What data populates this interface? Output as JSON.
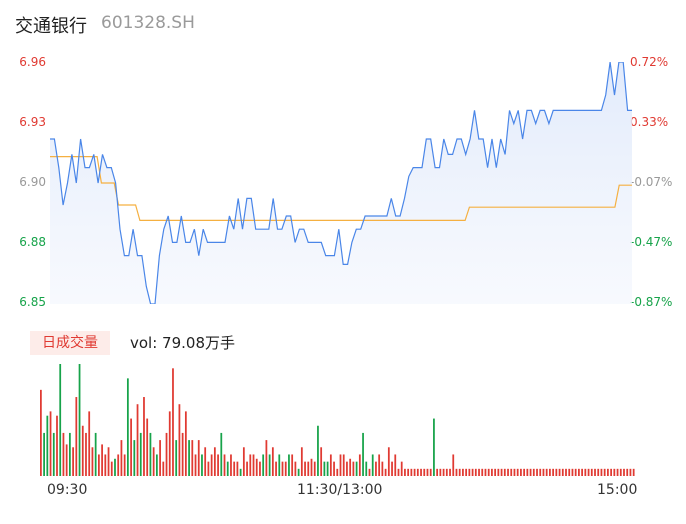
{
  "header": {
    "name": "交通银行",
    "code": "601328.SH"
  },
  "chart_data": [
    {
      "type": "line",
      "price_ticks": [
        "6.96",
        "6.93",
        "6.90",
        "6.88",
        "6.85"
      ],
      "pct_ticks": [
        "0.72%",
        "0.33%",
        "-0.07%",
        "-0.47%",
        "-0.87%"
      ],
      "ylim": [
        6.85,
        6.96
      ],
      "series": [
        {
          "values": [
            6.925,
            6.925,
            6.912,
            6.895,
            6.905,
            6.918,
            6.905,
            6.925,
            6.912,
            6.912,
            6.918,
            6.905,
            6.918,
            6.912,
            6.912,
            6.905,
            6.884,
            6.872,
            6.872,
            6.884,
            6.872,
            6.872,
            6.858,
            6.85,
            6.85,
            6.872,
            6.884,
            6.89,
            6.878,
            6.878,
            6.89,
            6.878,
            6.878,
            6.884,
            6.872,
            6.884,
            6.878,
            6.878,
            6.878,
            6.878,
            6.878,
            6.89,
            6.884,
            6.898,
            6.884,
            6.898,
            6.898,
            6.884,
            6.884,
            6.884,
            6.884,
            6.898,
            6.884,
            6.884,
            6.89,
            6.89,
            6.878,
            6.884,
            6.884,
            6.878,
            6.878,
            6.878,
            6.878,
            6.872,
            6.872,
            6.872,
            6.884,
            6.868,
            6.868,
            6.878,
            6.884,
            6.884,
            6.89,
            6.89,
            6.89,
            6.89,
            6.89,
            6.89,
            6.898,
            6.89,
            6.89,
            6.898,
            6.908,
            6.912,
            6.912,
            6.912,
            6.925,
            6.925,
            6.912,
            6.912,
            6.925,
            6.918,
            6.918,
            6.925,
            6.925,
            6.918,
            6.925,
            6.938,
            6.925,
            6.925,
            6.912,
            6.925,
            6.912,
            6.925,
            6.918,
            6.938,
            6.932,
            6.938,
            6.925,
            6.938,
            6.938,
            6.932,
            6.938,
            6.938,
            6.932,
            6.938,
            6.938,
            6.938,
            6.938,
            6.938,
            6.938,
            6.938,
            6.938,
            6.938,
            6.938,
            6.938,
            6.938,
            6.945,
            6.96,
            6.945,
            6.96,
            6.96,
            6.938,
            6.938
          ]
        },
        {
          "values": [
            6.917,
            6.917,
            6.917,
            6.917,
            6.917,
            6.917,
            6.917,
            6.917,
            6.917,
            6.917,
            6.917,
            6.917,
            6.905,
            6.905,
            6.905,
            6.905,
            6.895,
            6.895,
            6.895,
            6.895,
            6.895,
            6.888,
            6.888,
            6.888,
            6.888,
            6.888,
            6.888,
            6.888,
            6.888,
            6.888,
            6.888,
            6.888,
            6.888,
            6.888,
            6.888,
            6.888,
            6.888,
            6.888,
            6.888,
            6.888,
            6.888,
            6.888,
            6.888,
            6.888,
            6.888,
            6.888,
            6.888,
            6.888,
            6.888,
            6.888,
            6.888,
            6.888,
            6.888,
            6.888,
            6.888,
            6.888,
            6.888,
            6.888,
            6.888,
            6.888,
            6.888,
            6.888,
            6.888,
            6.888,
            6.888,
            6.888,
            6.888,
            6.888,
            6.888,
            6.888,
            6.888,
            6.888,
            6.888,
            6.888,
            6.888,
            6.888,
            6.888,
            6.888,
            6.888,
            6.888,
            6.888,
            6.888,
            6.888,
            6.888,
            6.888,
            6.888,
            6.888,
            6.888,
            6.888,
            6.888,
            6.888,
            6.888,
            6.888,
            6.888,
            6.888,
            6.888,
            6.888,
            6.888,
            6.894,
            6.894,
            6.894,
            6.894,
            6.894,
            6.894,
            6.894,
            6.894,
            6.894,
            6.894,
            6.894,
            6.894,
            6.894,
            6.894,
            6.894,
            6.894,
            6.894,
            6.894,
            6.894,
            6.894,
            6.894,
            6.894,
            6.894,
            6.894,
            6.894,
            6.894,
            6.894,
            6.894,
            6.894,
            6.894,
            6.894,
            6.894,
            6.894,
            6.894,
            6.894,
            6.904,
            6.904,
            6.904,
            6.904
          ]
        }
      ],
      "colors": {
        "price": "#4a86e8",
        "avg": "#f5b041",
        "up": "#e03a32",
        "down": "#17a34a",
        "flat": "#999999"
      }
    },
    {
      "type": "bar",
      "label": "日成交量",
      "summary": "vol: 79.08万手",
      "x_ticks": [
        "09:30",
        "11:30/13:00",
        "15:00"
      ],
      "values": [
        60,
        30,
        42,
        45,
        30,
        42,
        78,
        30,
        22,
        30,
        20,
        55,
        78,
        35,
        30,
        45,
        20,
        30,
        15,
        22,
        15,
        20,
        10,
        12,
        15,
        25,
        15,
        68,
        40,
        25,
        50,
        30,
        55,
        40,
        30,
        20,
        15,
        25,
        10,
        30,
        45,
        75,
        25,
        50,
        30,
        45,
        25,
        25,
        15,
        25,
        15,
        20,
        10,
        15,
        20,
        15,
        30,
        15,
        10,
        15,
        10,
        10,
        5,
        20,
        10,
        15,
        15,
        12,
        10,
        15,
        25,
        15,
        20,
        10,
        15,
        10,
        10,
        15,
        15,
        10,
        5,
        20,
        10,
        10,
        12,
        10,
        35,
        20,
        10,
        10,
        15,
        10,
        5,
        15,
        15,
        10,
        12,
        10,
        10,
        15,
        30,
        10,
        5,
        15,
        10,
        15,
        10,
        5,
        20,
        10,
        15,
        5,
        10,
        5,
        5,
        5,
        5,
        5,
        5,
        5,
        5,
        5,
        40,
        5,
        5,
        5,
        5,
        5,
        15,
        5,
        5,
        5,
        5,
        5,
        5,
        5,
        5,
        5,
        5,
        5,
        5,
        5,
        5,
        5,
        5,
        5,
        5,
        5,
        5,
        5,
        5,
        5,
        5,
        5,
        5,
        5,
        5,
        5,
        5,
        5,
        5,
        5,
        5,
        5,
        5,
        5,
        5,
        5,
        5,
        5,
        5,
        5,
        5,
        5,
        5,
        5,
        5,
        5,
        5,
        5,
        5,
        5,
        5,
        5,
        5
      ],
      "directions": [
        "up",
        "down",
        "down",
        "up",
        "down",
        "up",
        "down",
        "up",
        "up",
        "down",
        "up",
        "up",
        "down",
        "up",
        "up",
        "up",
        "up",
        "down",
        "up",
        "up",
        "up",
        "up",
        "up",
        "down",
        "up",
        "up",
        "up",
        "down",
        "up",
        "down",
        "up",
        "down",
        "up",
        "up",
        "down",
        "up",
        "down",
        "up",
        "up",
        "up",
        "up",
        "up",
        "down",
        "up",
        "up",
        "up",
        "down",
        "up",
        "up",
        "up",
        "down",
        "up",
        "up",
        "up",
        "up",
        "up",
        "down",
        "up",
        "down",
        "up",
        "up",
        "up",
        "down",
        "up",
        "up",
        "up",
        "up",
        "up",
        "up",
        "down",
        "up",
        "down",
        "up",
        "up",
        "down",
        "up",
        "up",
        "down",
        "up",
        "up",
        "down",
        "up",
        "up",
        "up",
        "up",
        "up",
        "down",
        "up",
        "down",
        "down",
        "up",
        "up",
        "up",
        "up",
        "up",
        "up",
        "up",
        "up",
        "down",
        "up",
        "down",
        "down",
        "up",
        "down",
        "up",
        "up",
        "up",
        "up",
        "up",
        "up",
        "up",
        "up",
        "up",
        "up",
        "up",
        "up",
        "up",
        "up",
        "up",
        "up",
        "up",
        "up",
        "down",
        "up",
        "up",
        "up",
        "up",
        "up",
        "up",
        "up",
        "up",
        "up",
        "up",
        "up",
        "up",
        "up",
        "up",
        "up",
        "up",
        "up",
        "up",
        "up",
        "up",
        "up",
        "up",
        "up",
        "up",
        "up",
        "up",
        "up",
        "up",
        "up",
        "up",
        "up",
        "up",
        "up",
        "up",
        "up",
        "up",
        "up",
        "up",
        "up",
        "up",
        "up",
        "up",
        "up",
        "up",
        "up",
        "up",
        "up",
        "up",
        "up",
        "up",
        "up",
        "up",
        "up",
        "up",
        "up",
        "up",
        "up",
        "up",
        "up",
        "up",
        "up",
        "up",
        "up"
      ]
    }
  ]
}
